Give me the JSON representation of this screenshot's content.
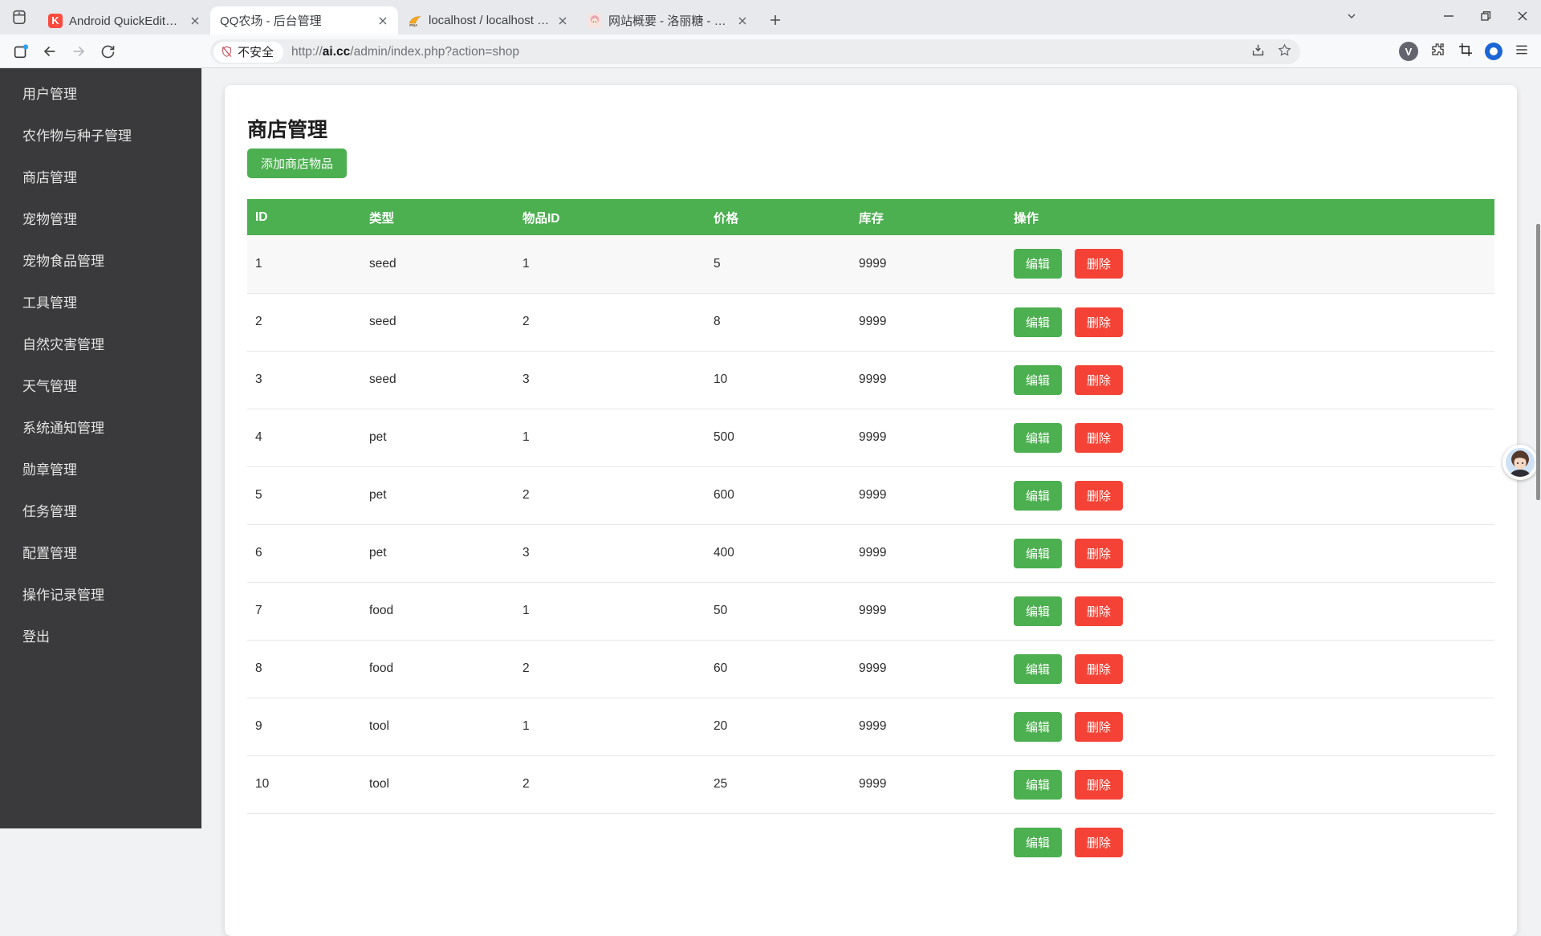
{
  "browser": {
    "tabs": [
      {
        "title": "Android QuickEdit编辑器 - 酷",
        "favicon": "quickedit-k",
        "active": false
      },
      {
        "title": "QQ农场 - 后台管理",
        "favicon": "none",
        "active": true
      },
      {
        "title": "localhost / localhost / xx | ph",
        "favicon": "phpmyadmin",
        "active": false
      },
      {
        "title": "网站概要 - 洛丽糖 - Powered b",
        "favicon": "anime-avatar",
        "active": false
      }
    ],
    "address": {
      "security_label": "不安全",
      "url_scheme": "http://",
      "url_host": "ai.cc",
      "url_path": "/admin/index.php?action=shop"
    }
  },
  "sidebar": {
    "items": [
      "用户管理",
      "农作物与种子管理",
      "商店管理",
      "宠物管理",
      "宠物食品管理",
      "工具管理",
      "自然灾害管理",
      "天气管理",
      "系统通知管理",
      "勋章管理",
      "任务管理",
      "配置管理",
      "操作记录管理",
      "登出"
    ]
  },
  "main": {
    "title": "商店管理",
    "add_button_label": "添加商店物品",
    "table": {
      "headers": [
        "ID",
        "类型",
        "物品ID",
        "价格",
        "库存",
        "操作"
      ],
      "edit_label": "编辑",
      "delete_label": "删除",
      "rows": [
        {
          "id": "1",
          "type": "seed",
          "item_id": "1",
          "price": "5",
          "stock": "9999",
          "partial": false
        },
        {
          "id": "2",
          "type": "seed",
          "item_id": "2",
          "price": "8",
          "stock": "9999",
          "partial": false
        },
        {
          "id": "3",
          "type": "seed",
          "item_id": "3",
          "price": "10",
          "stock": "9999",
          "partial": false
        },
        {
          "id": "4",
          "type": "pet",
          "item_id": "1",
          "price": "500",
          "stock": "9999",
          "partial": false
        },
        {
          "id": "5",
          "type": "pet",
          "item_id": "2",
          "price": "600",
          "stock": "9999",
          "partial": false
        },
        {
          "id": "6",
          "type": "pet",
          "item_id": "3",
          "price": "400",
          "stock": "9999",
          "partial": false
        },
        {
          "id": "7",
          "type": "food",
          "item_id": "1",
          "price": "50",
          "stock": "9999",
          "partial": false
        },
        {
          "id": "8",
          "type": "food",
          "item_id": "2",
          "price": "60",
          "stock": "9999",
          "partial": false
        },
        {
          "id": "9",
          "type": "tool",
          "item_id": "1",
          "price": "20",
          "stock": "9999",
          "partial": false
        },
        {
          "id": "10",
          "type": "tool",
          "item_id": "2",
          "price": "25",
          "stock": "9999",
          "partial": false
        },
        {
          "id": "",
          "type": "",
          "item_id": "",
          "price": "",
          "stock": "",
          "partial": true
        }
      ]
    }
  },
  "colors": {
    "accent_green": "#4caf50",
    "danger_red": "#f44336",
    "sidebar_bg": "#3a3a3c"
  }
}
